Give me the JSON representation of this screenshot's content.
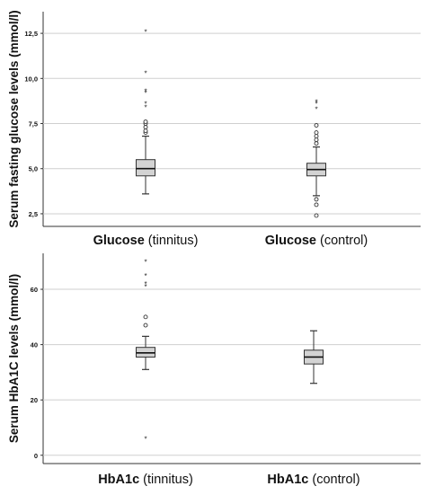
{
  "chart_data": [
    {
      "type": "box",
      "ylabel": "Serum fasting glucose levels (mmol/l)",
      "ylim": [
        1.8,
        13.7
      ],
      "yticks": [
        2.5,
        5.0,
        7.5,
        10.0,
        12.5
      ],
      "ytick_labels": [
        "2,5",
        "5,0",
        "7,5",
        "10,0",
        "12,5"
      ],
      "grid": true,
      "groups": [
        {
          "label_bold": "Glucose",
          "label_rest": " (tinnitus)",
          "whisker_low": 3.6,
          "q1": 4.6,
          "median": 5.0,
          "q3": 5.5,
          "whisker_high": 6.8,
          "outliers": [
            7.0,
            7.1,
            7.3,
            7.5,
            7.6
          ],
          "extremes": [
            8.4,
            8.6,
            9.2,
            9.3,
            10.3,
            12.6
          ]
        },
        {
          "label_bold": "Glucose",
          "label_rest": " (control)",
          "whisker_low": 3.5,
          "q1": 4.6,
          "median": 4.95,
          "q3": 5.3,
          "whisker_high": 6.2,
          "outliers": [
            2.4,
            3.0,
            3.3,
            6.4,
            6.6,
            6.8,
            7.0,
            7.4
          ],
          "extremes": [
            8.3,
            8.6,
            8.7
          ]
        }
      ]
    },
    {
      "type": "box",
      "ylabel": "Serum HbA1C levels (mmol/l)",
      "ylim": [
        -3,
        73
      ],
      "yticks": [
        0,
        20,
        40,
        60
      ],
      "ytick_labels": [
        "0",
        "20",
        "40",
        "60"
      ],
      "grid": true,
      "groups": [
        {
          "label_bold": "HbA1c",
          "label_rest": " (tinnitus)",
          "whisker_low": 31,
          "q1": 35.5,
          "median": 37,
          "q3": 39,
          "whisker_high": 43,
          "outliers": [
            47,
            50
          ],
          "extremes": [
            6,
            61,
            62,
            65,
            70
          ]
        },
        {
          "label_bold": "HbA1c",
          "label_rest": " (control)",
          "whisker_low": 26,
          "q1": 33,
          "median": 35.5,
          "q3": 38,
          "whisker_high": 45,
          "outliers": [],
          "extremes": []
        }
      ]
    }
  ]
}
